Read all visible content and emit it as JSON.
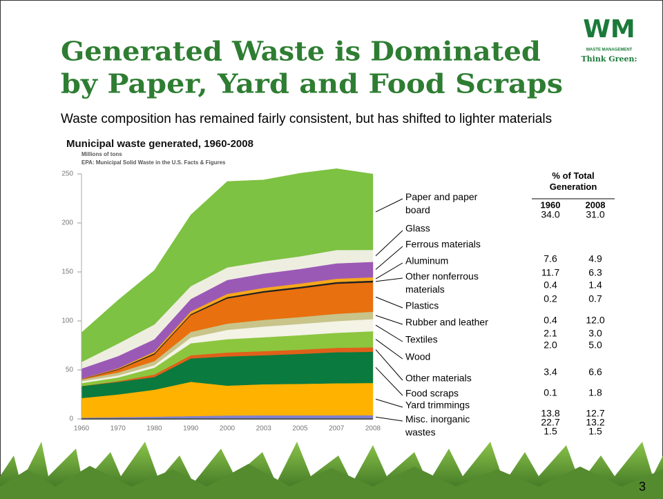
{
  "title": [
    "Generated Waste is Dominated",
    "by Paper, Yard and Food Scraps"
  ],
  "logo": {
    "mark": "WM",
    "name": "WASTE MANAGEMENT",
    "slogan": "Think Green:"
  },
  "subtitle": "Waste composition has remained fairly consistent, but has shifted to lighter materials",
  "chart_data": {
    "type": "stacked-area",
    "title": "Municipal waste generated, 1960-2008",
    "subtitle": "Millions of tons",
    "source": "EPA: Municipal Solid Waste in the U.S. Facts & Figures",
    "categories": [
      "1960",
      "1970",
      "1980",
      "1990",
      "2000",
      "2003",
      "2005",
      "2007",
      "2008"
    ],
    "ylim": [
      0,
      250
    ],
    "yticks": [
      0,
      50,
      100,
      150,
      200,
      250
    ],
    "series": [
      {
        "name": "Paper and paper board",
        "color": "#7dc242",
        "values": [
          30.0,
          44.3,
          55.2,
          72.7,
          87.7,
          83.1,
          84.8,
          83.0,
          77.4
        ]
      },
      {
        "name": "Glass",
        "color": "#eeeee0",
        "values": [
          6.7,
          12.7,
          15.1,
          13.1,
          12.8,
          12.5,
          12.8,
          13.6,
          12.2
        ]
      },
      {
        "name": "Ferrous materials",
        "color": "#9b59b6",
        "values": [
          10.3,
          12.4,
          12.6,
          12.6,
          14.2,
          14.5,
          14.9,
          15.7,
          15.7
        ]
      },
      {
        "name": "Aluminum",
        "color": "#f7a81b",
        "values": [
          0.3,
          0.8,
          1.7,
          2.8,
          3.2,
          3.2,
          3.3,
          3.4,
          3.4
        ]
      },
      {
        "name": "Other nonferrous materials",
        "color": "#222222",
        "values": [
          0.2,
          0.7,
          1.2,
          1.1,
          1.5,
          1.6,
          1.7,
          1.7,
          1.8
        ]
      },
      {
        "name": "Plastics",
        "color": "#e8700e",
        "values": [
          0.4,
          2.9,
          6.8,
          17.1,
          25.6,
          27.9,
          29.2,
          30.7,
          30.0
        ]
      },
      {
        "name": "Rubber and leather",
        "color": "#c8c48a",
        "values": [
          1.8,
          3.0,
          4.2,
          5.8,
          6.4,
          6.8,
          7.0,
          7.5,
          7.5
        ]
      },
      {
        "name": "Textiles",
        "color": "#f3f3e6",
        "values": [
          1.8,
          2.0,
          2.5,
          5.8,
          9.5,
          10.9,
          11.5,
          11.9,
          12.4
        ]
      },
      {
        "name": "Wood",
        "color": "#8cc63f",
        "values": [
          3.0,
          3.7,
          7.0,
          12.2,
          13.6,
          14.2,
          14.8,
          15.3,
          16.4
        ]
      },
      {
        "name": "Other materials",
        "color": "#e0601a",
        "values": [
          0.1,
          0.8,
          2.5,
          3.2,
          4.0,
          4.2,
          4.3,
          4.5,
          4.6
        ]
      },
      {
        "name": "Food scraps",
        "color": "#0b7a3e",
        "values": [
          12.2,
          12.8,
          13.0,
          23.9,
          29.8,
          29.6,
          30.6,
          31.7,
          31.8
        ]
      },
      {
        "name": "Yard trimmings",
        "color": "#ffb200",
        "values": [
          20.0,
          23.2,
          27.5,
          35.0,
          30.5,
          31.7,
          32.1,
          32.6,
          32.9
        ]
      },
      {
        "name": "Misc. inorganic wastes",
        "color": "#8080d0",
        "values": [
          1.3,
          1.8,
          2.3,
          2.9,
          3.5,
          3.7,
          3.7,
          3.8,
          3.8
        ]
      }
    ]
  },
  "table": {
    "title": "% of Total Generation",
    "columns": [
      "1960",
      "2008"
    ],
    "rows": [
      [
        "34.0",
        "31.0"
      ],
      [
        "7.6",
        "4.9"
      ],
      [
        "11.7",
        "6.3"
      ],
      [
        "0.4",
        "1.4"
      ],
      [
        "0.2",
        "0.7"
      ],
      [
        "0.4",
        "12.0"
      ],
      [
        "2.1",
        "3.0"
      ],
      [
        "2.0",
        "5.0"
      ],
      [
        "3.4",
        "6.6"
      ],
      [
        "0.1",
        "1.8"
      ],
      [
        "13.8",
        "12.7"
      ],
      [
        "22.7",
        "13.2"
      ],
      [
        "1.5",
        "1.5"
      ]
    ]
  },
  "page_number": "3"
}
